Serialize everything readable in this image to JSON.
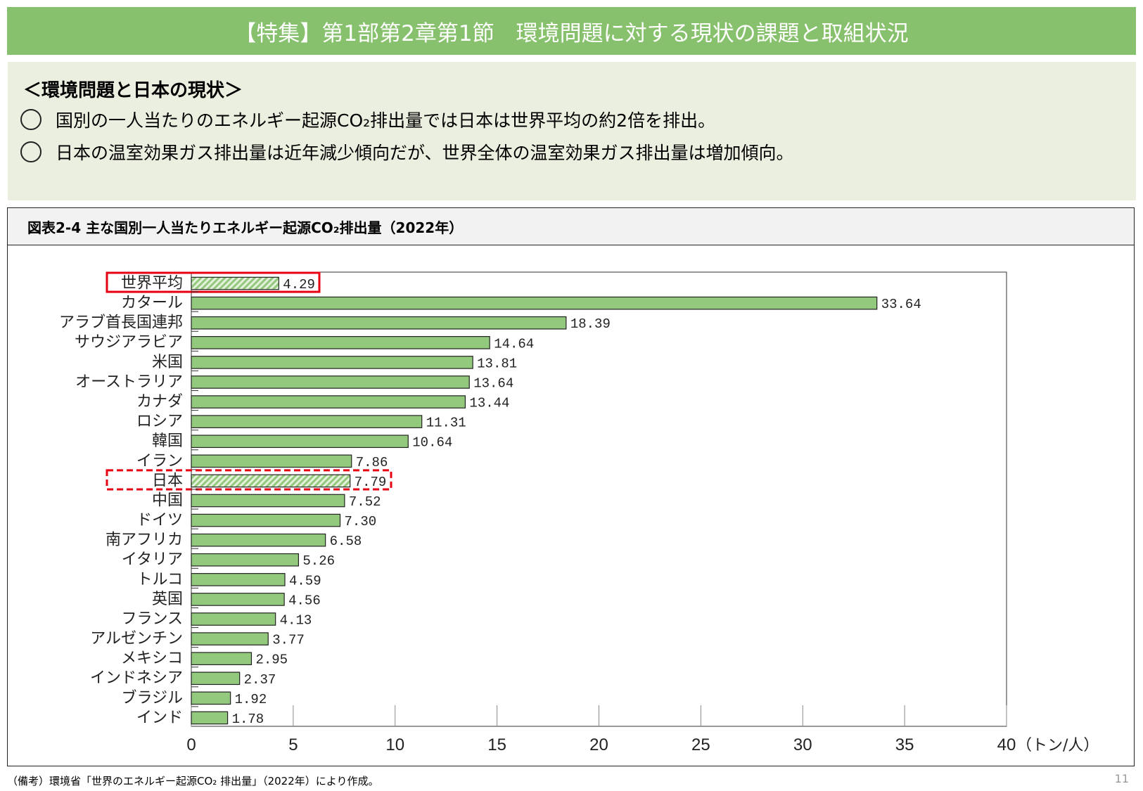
{
  "header": {
    "title": "【特集】第1部第2章第1節　環境問題に対する現状の課題と取組状況"
  },
  "summary": {
    "heading": "＜環境問題と日本の現状＞",
    "bullets": [
      "国別の一人当たりのエネルギー起源CO₂排出量では日本は世界平均の約2倍を排出。",
      "日本の温室効果ガス排出量は近年減少傾向だが、世界全体の温室効果ガス排出量は増加傾向。"
    ]
  },
  "chart_data": {
    "type": "bar",
    "orientation": "horizontal",
    "title": "図表2-4  主な国別一人当たりエネルギー起源CO₂排出量（2022年）",
    "xlabel": "（トン/人）",
    "xlim": [
      0,
      40
    ],
    "xticks": [
      "0",
      "5",
      "10",
      "15",
      "20",
      "25",
      "30",
      "35",
      "40"
    ],
    "categories": [
      "世界平均",
      "カタール",
      "アラブ首長国連邦",
      "サウジアラビア",
      "米国",
      "オーストラリア",
      "カナダ",
      "ロシア",
      "韓国",
      "イラン",
      "日本",
      "中国",
      "ドイツ",
      "南アフリカ",
      "イタリア",
      "トルコ",
      "英国",
      "フランス",
      "アルゼンチン",
      "メキシコ",
      "インドネシア",
      "ブラジル",
      "インド"
    ],
    "values": [
      4.29,
      33.64,
      18.39,
      14.64,
      13.81,
      13.64,
      13.44,
      11.31,
      10.64,
      7.86,
      7.79,
      7.52,
      7.3,
      6.58,
      5.26,
      4.59,
      4.56,
      4.13,
      3.77,
      2.95,
      2.37,
      1.92,
      1.78
    ],
    "labels": [
      "4.29",
      "33.64",
      "18.39",
      "14.64",
      "13.81",
      "13.64",
      "13.44",
      "11.31",
      "10.64",
      "7.86",
      "7.79",
      "7.52",
      "7.30",
      "6.58",
      "5.26",
      "4.59",
      "4.56",
      "4.13",
      "3.77",
      "2.95",
      "2.37",
      "1.92",
      "1.78"
    ],
    "highlighted": [
      "世界平均",
      "日本"
    ],
    "colors": {
      "bar": "#93c97c",
      "highlight_box": "#e60012"
    },
    "grid": false
  },
  "footer": {
    "note": "（備考）環境省「世界のエネルギー起源CO₂ 排出量」（2022年）により作成。",
    "page": "11"
  }
}
